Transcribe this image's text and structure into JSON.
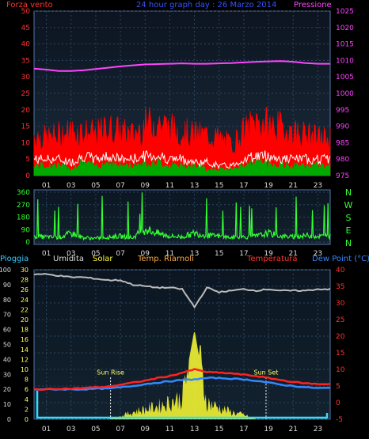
{
  "chart_data": [
    {
      "type": "line",
      "panel": "wind-pressure",
      "title": "24 hour graph day : 26 Marzo 2014",
      "left_label": "Forza vento",
      "right_label": "Pressione",
      "x_ticks": [
        "01",
        "03",
        "05",
        "07",
        "09",
        "11",
        "13",
        "15",
        "17",
        "19",
        "21",
        "23"
      ],
      "y_left_ticks": [
        "0",
        "5",
        "10",
        "15",
        "20",
        "25",
        "30",
        "35",
        "40",
        "45",
        "50"
      ],
      "y_left_range": [
        0,
        50
      ],
      "y_right_ticks": [
        "975",
        "980",
        "985",
        "990",
        "995",
        "1000",
        "1005",
        "1010",
        "1015",
        "1020",
        "1025"
      ],
      "y_right_range": [
        975,
        1025
      ],
      "series": [
        {
          "key": "gust",
          "color": "#ff0000",
          "values": [
            12,
            11,
            12,
            13,
            13,
            12,
            14,
            13,
            12,
            15,
            16,
            14,
            13,
            12,
            12,
            11,
            9,
            13,
            16,
            15,
            14,
            13,
            12,
            11
          ]
        },
        {
          "key": "speed",
          "color": "#ffffff",
          "values": [
            5,
            5,
            5,
            4,
            6,
            5,
            6,
            5,
            5,
            6,
            6,
            5,
            5,
            4,
            4,
            3,
            3,
            5,
            6,
            6,
            5,
            5,
            5,
            5
          ]
        },
        {
          "key": "avg",
          "color": "#00aa00",
          "values": [
            3,
            3,
            3,
            2,
            4,
            3,
            4,
            3,
            3,
            4,
            4,
            3,
            3,
            3,
            2,
            2,
            2,
            3,
            4,
            4,
            3,
            3,
            3,
            3
          ]
        },
        {
          "key": "pressure",
          "color": "#ff44ff",
          "values": [
            1007.5,
            1007.2,
            1006.8,
            1006.8,
            1007.0,
            1007.4,
            1007.8,
            1008.2,
            1008.5,
            1008.8,
            1008.9,
            1009.0,
            1009.1,
            1009.0,
            1009.0,
            1009.1,
            1009.2,
            1009.4,
            1009.6,
            1009.7,
            1009.8,
            1009.6,
            1009.2,
            1009.0
          ]
        }
      ]
    },
    {
      "type": "line",
      "panel": "wind-direction",
      "x_ticks": [
        "01",
        "03",
        "05",
        "07",
        "09",
        "11",
        "13",
        "15",
        "17",
        "19",
        "21",
        "23"
      ],
      "y_ticks": [
        "0",
        "90",
        "180",
        "270",
        "360"
      ],
      "y_range": [
        0,
        360
      ],
      "compass": [
        "N",
        "W",
        "S",
        "E",
        "N"
      ],
      "series": [
        {
          "key": "direction",
          "color": "#33ff33",
          "values": [
            40,
            35,
            30,
            60,
            30,
            25,
            35,
            40,
            30,
            90,
            60,
            40,
            35,
            60,
            45,
            40,
            30,
            35,
            40,
            60,
            40,
            35,
            45,
            40
          ]
        }
      ]
    },
    {
      "type": "line",
      "panel": "rain-temperature",
      "labels": {
        "rain": "Pioggia",
        "humidity": "Umidita",
        "solar": "Solar",
        "heating": "Temp. Riarnoli",
        "temperature": "Temperatura",
        "dewpoint": "Dew Point (°C)"
      },
      "x_ticks": [
        "01",
        "03",
        "05",
        "07",
        "09",
        "11",
        "13",
        "15",
        "17",
        "19",
        "21",
        "23"
      ],
      "y_left_outer_ticks": [
        "0",
        "10",
        "20",
        "30",
        "40",
        "50",
        "60",
        "70",
        "80",
        "90",
        "100"
      ],
      "y_left_inner_ticks": [
        "0",
        "2",
        "4",
        "6",
        "8",
        "10",
        "12",
        "14",
        "16",
        "18",
        "20",
        "22",
        "24",
        "26",
        "28",
        "30"
      ],
      "y_right_ticks": [
        "-5",
        "0",
        "5",
        "10",
        "15",
        "20",
        "25",
        "30",
        "35",
        "40"
      ],
      "y_right_range": [
        -5,
        40
      ],
      "sun_rise_label": "Sun Rise",
      "sun_set_label": "Sun Set",
      "sun_rise_hour": 6.2,
      "sun_set_hour": 18.8,
      "series": [
        {
          "key": "humidity",
          "color": "#bbbbbb",
          "values": [
            97,
            97,
            96,
            95,
            95,
            94,
            93,
            93,
            90,
            89,
            88,
            88,
            87,
            75,
            88,
            85,
            86,
            87,
            86,
            87,
            86,
            86,
            86,
            87
          ]
        },
        {
          "key": "temperature",
          "color": "#ff2222",
          "values": [
            4.0,
            4.0,
            4.2,
            4.2,
            4.4,
            4.6,
            4.8,
            5.4,
            6.0,
            6.6,
            7.4,
            8.0,
            9.0,
            10.0,
            9.2,
            9.0,
            8.8,
            8.4,
            8.0,
            7.4,
            6.8,
            6.2,
            5.8,
            5.6
          ]
        },
        {
          "key": "dewpoint",
          "color": "#3388ff",
          "values": [
            4.0,
            4.0,
            4.0,
            4.0,
            4.0,
            4.2,
            4.2,
            4.6,
            5.0,
            5.6,
            6.0,
            6.4,
            6.8,
            7.0,
            7.4,
            7.4,
            7.2,
            7.0,
            6.6,
            6.0,
            5.4,
            5.0,
            4.6,
            4.4
          ]
        },
        {
          "key": "solar",
          "color": "#ffff33",
          "values": [
            0,
            0,
            0,
            0,
            0,
            0,
            0,
            2,
            5,
            7,
            9,
            12,
            15,
            60,
            12,
            8,
            5,
            3,
            0,
            0,
            0,
            0,
            0,
            0
          ]
        },
        {
          "key": "rain",
          "color": "#33ddff",
          "values": [
            0,
            0,
            0,
            0,
            0,
            0,
            0,
            0,
            0,
            0,
            0,
            0,
            0,
            0,
            0,
            0,
            0,
            0,
            0,
            0,
            0,
            0,
            0,
            0
          ]
        }
      ]
    }
  ]
}
